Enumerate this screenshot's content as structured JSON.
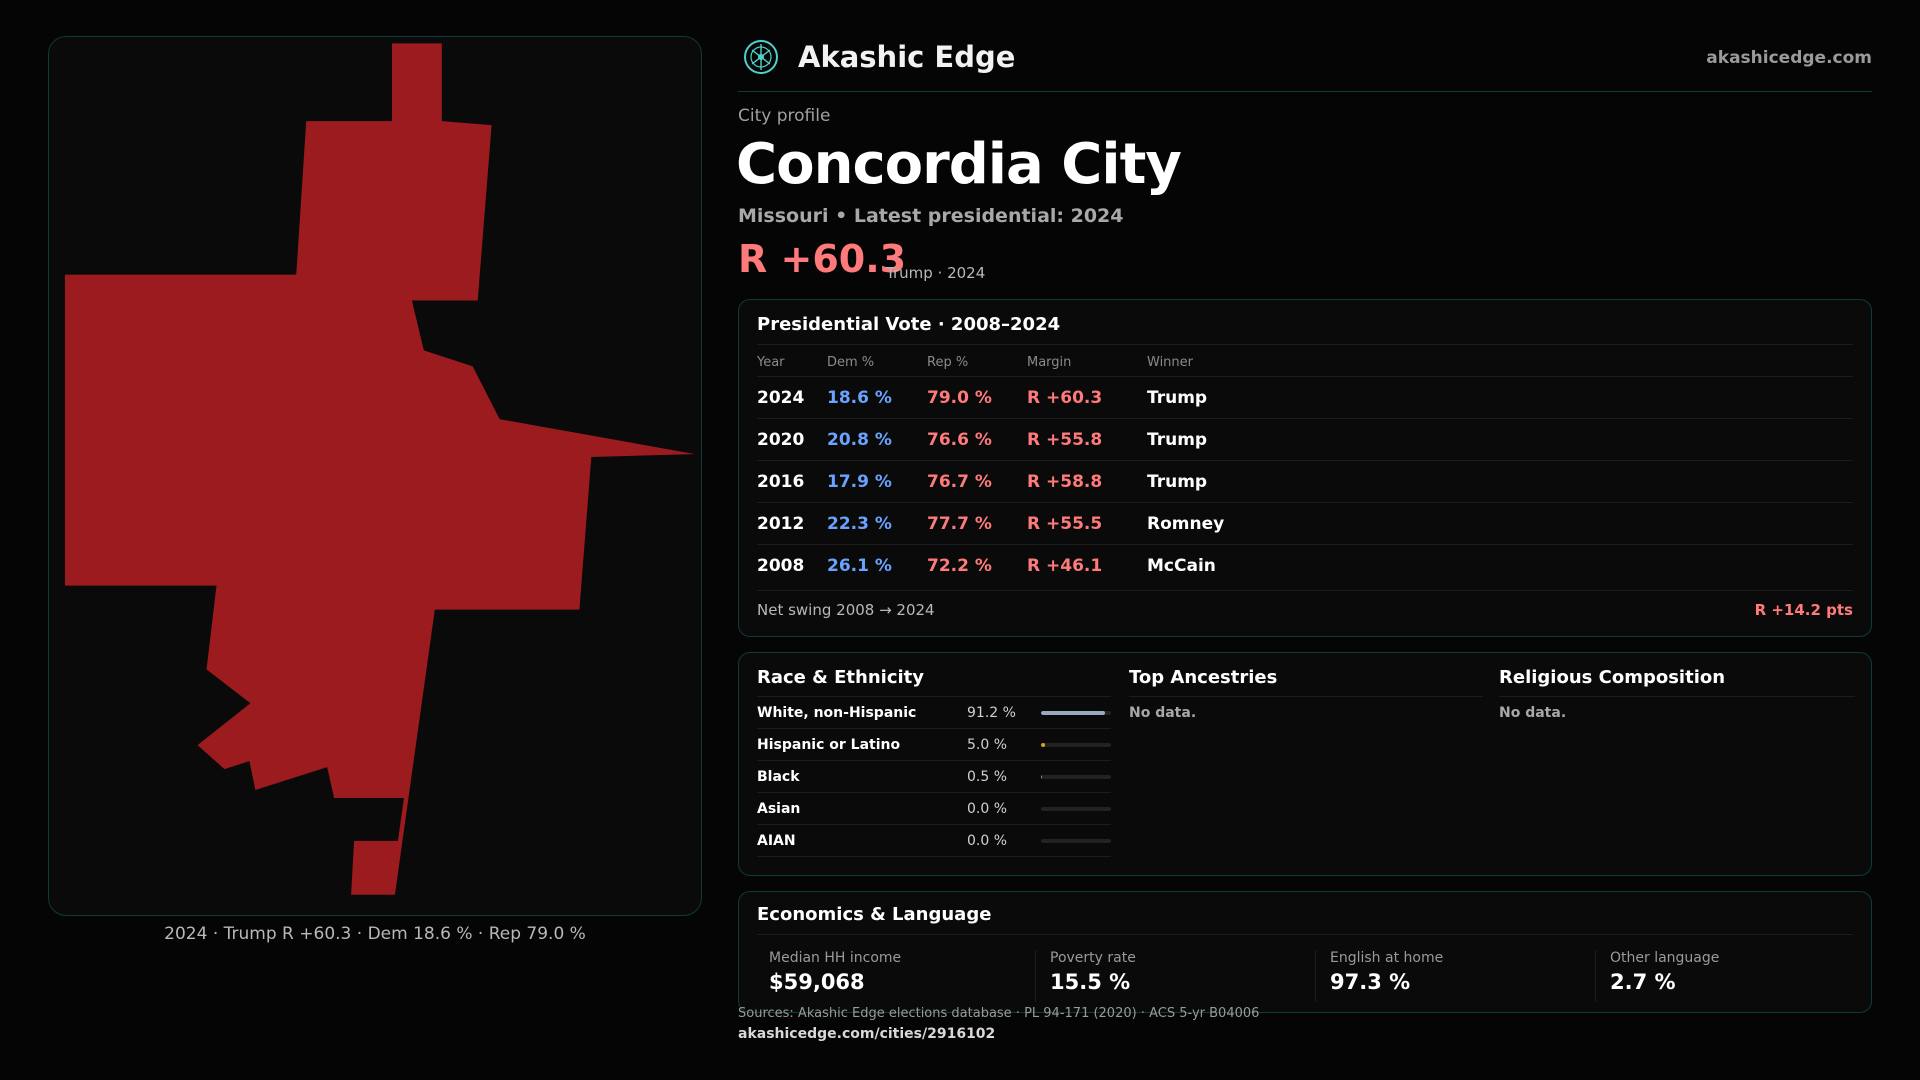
{
  "brand": {
    "name": "Akashic Edge",
    "url": "akashicedge.com",
    "icon": "akashic-edge-logo-icon"
  },
  "profile": {
    "eyebrow": "City profile",
    "city": "Concordia City",
    "subtitle": "Missouri • Latest presidential: 2024",
    "margin": "R +60.3",
    "margin_note": "Trump · 2024"
  },
  "map": {
    "caption": "2024 · Trump R +60.3 · Dem 18.6 % · Rep 79.0 %",
    "fill_color": "#9b1b1e"
  },
  "vote": {
    "title": "Presidential Vote · 2008–2024",
    "columns": [
      "Year",
      "Dem %",
      "Rep %",
      "Margin",
      "Winner"
    ],
    "rows": [
      {
        "year": "2024",
        "dem": "18.6 %",
        "rep": "79.0 %",
        "margin": "R +60.3",
        "winner": "Trump"
      },
      {
        "year": "2020",
        "dem": "20.8 %",
        "rep": "76.6 %",
        "margin": "R +55.8",
        "winner": "Trump"
      },
      {
        "year": "2016",
        "dem": "17.9 %",
        "rep": "76.7 %",
        "margin": "R +58.8",
        "winner": "Trump"
      },
      {
        "year": "2012",
        "dem": "22.3 %",
        "rep": "77.7 %",
        "margin": "R +55.5",
        "winner": "Romney"
      },
      {
        "year": "2008",
        "dem": "26.1 %",
        "rep": "72.2 %",
        "margin": "R +46.1",
        "winner": "McCain"
      }
    ],
    "swing_label": "Net swing 2008 → 2024",
    "swing_value": "R +14.2 pts"
  },
  "race": {
    "title": "Race & Ethnicity",
    "rows": [
      {
        "name": "White, non-Hispanic",
        "value": "91.2 %",
        "share": 0.912,
        "color": "#9aa8c0"
      },
      {
        "name": "Hispanic or Latino",
        "value": "5.0 %",
        "share": 0.05,
        "color": "#e0a020"
      },
      {
        "name": "Black",
        "value": "0.5 %",
        "share": 0.005,
        "color": "#8a8a8a"
      },
      {
        "name": "Asian",
        "value": "0.0 %",
        "share": 0.0,
        "color": "#8a8a8a"
      },
      {
        "name": "AIAN",
        "value": "0.0 %",
        "share": 0.0,
        "color": "#8a8a8a"
      }
    ]
  },
  "ancestries": {
    "title": "Top Ancestries",
    "empty": "No data."
  },
  "religion": {
    "title": "Religious Composition",
    "empty": "No data."
  },
  "economics": {
    "title": "Economics & Language",
    "stats": [
      {
        "label": "Median HH income",
        "value": "$59,068"
      },
      {
        "label": "Poverty rate",
        "value": "15.5 %"
      },
      {
        "label": "English at home",
        "value": "97.3 %"
      },
      {
        "label": "Other language",
        "value": "2.7 %"
      }
    ]
  },
  "footer": {
    "sources": "Sources: Akashic Edge elections database · PL 94-171 (2020) · ACS 5-yr B04006",
    "permalink": "akashicedge.com/cities/2916102"
  }
}
